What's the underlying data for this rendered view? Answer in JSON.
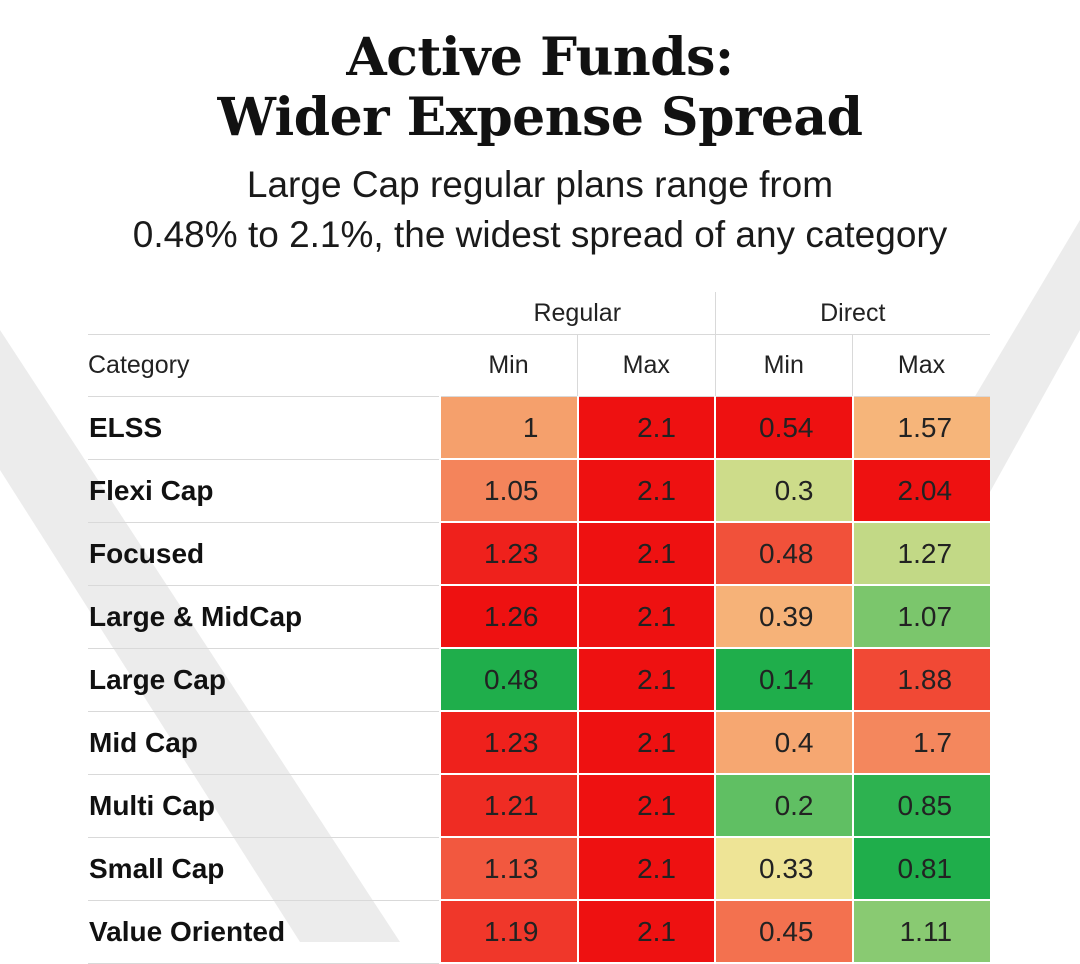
{
  "title_lines": [
    "Active Funds:",
    "Wider Expense Spread"
  ],
  "subtitle_lines": [
    "Large Cap regular plans range from",
    "0.48% to 2.1%, the widest spread of any category"
  ],
  "table": {
    "category_header": "Category",
    "groups": [
      "Regular",
      "Direct"
    ],
    "columns": [
      "Min",
      "Max",
      "Min",
      "Max"
    ]
  },
  "chart_data": {
    "type": "heatmap",
    "title": "Active Funds: Wider Expense Spread",
    "subtitle": "Large Cap regular plans range from 0.48% to 2.1%, the widest spread of any category",
    "row_header": "Category",
    "column_groups": [
      {
        "name": "Regular",
        "columns": [
          "Min",
          "Max"
        ]
      },
      {
        "name": "Direct",
        "columns": [
          "Min",
          "Max"
        ]
      }
    ],
    "rows": [
      {
        "category": "ELSS",
        "values": [
          "1",
          "2.1",
          "0.54",
          "1.57"
        ]
      },
      {
        "category": "Flexi Cap",
        "values": [
          "1.05",
          "2.1",
          "0.3",
          "2.04"
        ]
      },
      {
        "category": "Focused",
        "values": [
          "1.23",
          "2.1",
          "0.48",
          "1.27"
        ]
      },
      {
        "category": "Large & MidCap",
        "values": [
          "1.26",
          "2.1",
          "0.39",
          "1.07"
        ]
      },
      {
        "category": "Large Cap",
        "values": [
          "0.48",
          "2.1",
          "0.14",
          "1.88"
        ]
      },
      {
        "category": "Mid Cap",
        "values": [
          "1.23",
          "2.1",
          "0.4",
          "1.7"
        ]
      },
      {
        "category": "Multi Cap",
        "values": [
          "1.21",
          "2.1",
          "0.2",
          "0.85"
        ]
      },
      {
        "category": "Small Cap",
        "values": [
          "1.13",
          "2.1",
          "0.33",
          "0.81"
        ]
      },
      {
        "category": "Value Oriented",
        "values": [
          "1.19",
          "2.1",
          "0.45",
          "1.11"
        ]
      }
    ],
    "color_scale": {
      "low": "#1fae4b",
      "mid": "#f9e79a",
      "high": "#ee1111",
      "scaled_per": "column"
    }
  }
}
